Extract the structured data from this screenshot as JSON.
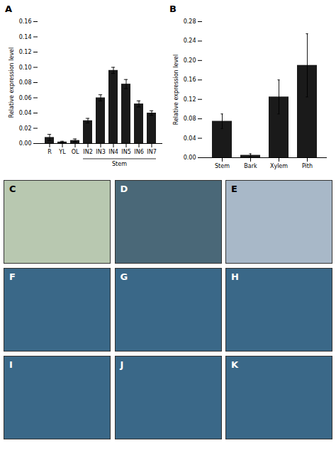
{
  "chart_data": [
    {
      "type": "bar",
      "title": "A",
      "categories": [
        "R",
        "YL",
        "OL",
        "IN2",
        "IN3",
        "IN4",
        "IN5",
        "IN6",
        "IN7"
      ],
      "values": [
        0.008,
        0.002,
        0.004,
        0.03,
        0.06,
        0.096,
        0.078,
        0.052,
        0.04
      ],
      "errors": [
        0.004,
        0.001,
        0.002,
        0.003,
        0.004,
        0.004,
        0.006,
        0.004,
        0.003
      ],
      "color": "#1a1a1a",
      "ylabel": "Relative expression level",
      "ylim": [
        0,
        0.16
      ],
      "yticks": [
        {
          "value": 0,
          "label": "0.00"
        },
        0.02,
        0.04,
        0.06,
        0.08,
        {
          "value": 0.1,
          "label": "0.10"
        },
        0.12,
        0.14,
        0.16
      ],
      "annotations": [
        {
          "text": "Stem",
          "from": "IN2",
          "to": "IN7"
        }
      ]
    },
    {
      "type": "bar",
      "title": "B",
      "categories": [
        "Stem",
        "Bark",
        "Xylem",
        "Pith"
      ],
      "values": [
        0.075,
        0.005,
        0.125,
        0.19
      ],
      "errors": [
        0.015,
        0.003,
        0.035,
        0.065
      ],
      "color": "#1a1a1a",
      "ylabel": "Relative expression level",
      "ylim": [
        0,
        0.28
      ],
      "yticks": [
        {
          "value": 0,
          "label": "0.00"
        },
        0.04,
        0.08,
        0.12,
        0.16,
        {
          "value": 0.2,
          "label": "0.20"
        },
        0.24,
        0.28
      ]
    },
    {
      "type": "image",
      "title": "C",
      "color": "#b8c8b0"
    },
    {
      "type": "image",
      "title": "D",
      "color": "#4a6878"
    },
    {
      "type": "image",
      "title": "E",
      "color": "#a8b8c8"
    },
    {
      "type": "image",
      "title": "F",
      "color": "#3a6888"
    },
    {
      "type": "image",
      "title": "G",
      "color": "#3a6888"
    },
    {
      "type": "image",
      "title": "H",
      "color": "#3a6888"
    },
    {
      "type": "image",
      "title": "I",
      "color": "#3a6888"
    },
    {
      "type": "image",
      "title": "J",
      "color": "#3a6888"
    },
    {
      "type": "image",
      "title": "K",
      "color": "#3a6888"
    }
  ]
}
